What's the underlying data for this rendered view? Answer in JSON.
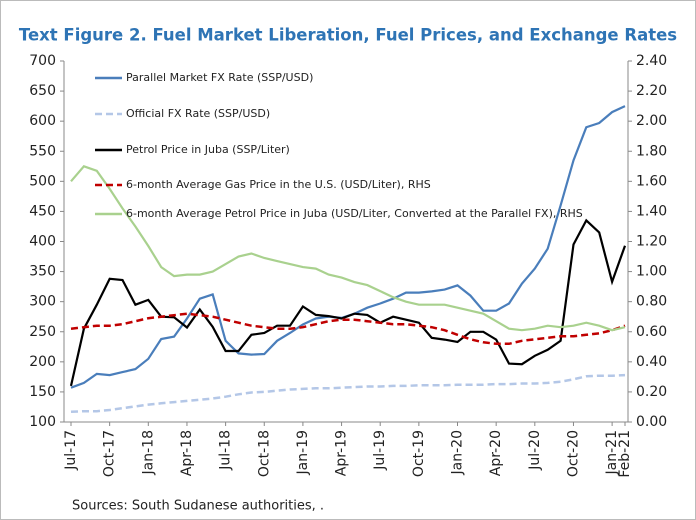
{
  "chart_data": {
    "type": "line",
    "title": "Text Figure 2. Fuel Market Liberation, Fuel Prices, and Exchange Rates",
    "source": "Sources: South Sudanese authorities, .",
    "categories": [
      "Jul-17",
      null,
      null,
      "Oct-17",
      null,
      null,
      "Jan-18",
      null,
      null,
      "Apr-18",
      null,
      null,
      "Jul-18",
      null,
      null,
      "Oct-18",
      null,
      null,
      "Jan-19",
      null,
      null,
      "Apr-19",
      null,
      null,
      "Jul-19",
      null,
      null,
      "Oct-19",
      null,
      null,
      "Jan-20",
      null,
      null,
      "Apr-20",
      null,
      null,
      "Jul-20",
      null,
      null,
      "Oct-20",
      null,
      null,
      "Jan-21",
      "Feb-21"
    ],
    "ylim": [
      100,
      700
    ],
    "yticks": [
      100,
      150,
      200,
      250,
      300,
      350,
      400,
      450,
      500,
      550,
      600,
      650,
      700
    ],
    "y2lim": [
      0,
      2.4
    ],
    "y2ticks": [
      {
        "value": 0,
        "label": "0.00"
      },
      {
        "value": 0.2,
        "label": "0.20"
      },
      {
        "value": 0.4,
        "label": "0.40"
      },
      {
        "value": 0.6,
        "label": "0.60"
      },
      {
        "value": 0.8,
        "label": "0.80"
      },
      {
        "value": 1,
        "label": "1.00"
      },
      {
        "value": 1.2,
        "label": "1.20"
      },
      {
        "value": 1.4,
        "label": "1.40"
      },
      {
        "value": 1.6,
        "label": "1.60"
      },
      {
        "value": 1.8,
        "label": "1.80"
      },
      {
        "value": 2,
        "label": "2.00"
      },
      {
        "value": 2.2,
        "label": "2.20"
      },
      {
        "value": 2.4,
        "label": "2.40"
      }
    ],
    "series": [
      {
        "name": "Parallel Market FX Rate (SSP/USD)",
        "color": "#4a7ebb",
        "dash": "solid",
        "values": [
          157,
          165,
          180,
          178,
          183,
          188,
          205,
          238,
          242,
          272,
          305,
          312,
          235,
          214,
          212,
          213,
          235,
          248,
          262,
          272,
          275,
          273,
          280,
          290,
          297,
          305,
          315,
          315,
          317,
          320,
          327,
          310,
          285,
          285,
          297,
          330,
          355,
          388,
          460,
          535,
          590,
          597,
          615,
          625
        ]
      },
      {
        "name": "Official FX Rate (SSP/USD)",
        "color": "#b4c7e7",
        "dash": "dashed",
        "values": [
          117,
          118,
          118,
          120,
          123,
          126,
          129,
          131,
          133,
          135,
          137,
          139,
          142,
          146,
          149,
          150,
          152,
          154,
          155,
          156,
          156,
          157,
          158,
          159,
          159,
          160,
          160,
          161,
          161,
          161,
          162,
          162,
          162,
          163,
          163,
          164,
          164,
          165,
          167,
          171,
          176,
          177,
          177,
          178
        ]
      },
      {
        "name": "Petrol Price in Juba (SSP/Liter)",
        "color": "#000000",
        "dash": "solid",
        "values": [
          160,
          255,
          295,
          338,
          336,
          295,
          303,
          275,
          274,
          257,
          287,
          258,
          218,
          218,
          245,
          248,
          260,
          260,
          292,
          278,
          276,
          272,
          280,
          278,
          265,
          275,
          270,
          265,
          240,
          237,
          233,
          250,
          250,
          237,
          197,
          196,
          210,
          220,
          235,
          395,
          435,
          415,
          333,
          393
        ]
      },
      {
        "name": "6-month Average Gas Price in the U.S. (USD/Liter), RHS",
        "color": "#c00000",
        "dash": "dashed",
        "axis": "y2",
        "values": [
          0.62,
          0.63,
          0.64,
          0.64,
          0.65,
          0.67,
          0.69,
          0.7,
          0.71,
          0.72,
          0.71,
          0.7,
          0.68,
          0.66,
          0.64,
          0.63,
          0.62,
          0.62,
          0.63,
          0.65,
          0.67,
          0.68,
          0.68,
          0.67,
          0.66,
          0.65,
          0.65,
          0.64,
          0.63,
          0.61,
          0.58,
          0.55,
          0.53,
          0.52,
          0.52,
          0.54,
          0.55,
          0.56,
          0.57,
          0.57,
          0.58,
          0.59,
          0.61,
          0.64
        ]
      },
      {
        "name": "6-month Average Petrol Price in Juba (USD/Liter, Converted at the Parallel FX), RHS",
        "color": "#a9d18e",
        "dash": "solid",
        "axis": "y2",
        "values": [
          1.6,
          1.7,
          1.67,
          1.55,
          1.42,
          1.3,
          1.17,
          1.03,
          0.97,
          0.98,
          0.98,
          1.0,
          1.05,
          1.1,
          1.12,
          1.09,
          1.07,
          1.05,
          1.03,
          1.02,
          0.98,
          0.96,
          0.93,
          0.91,
          0.87,
          0.83,
          0.8,
          0.78,
          0.78,
          0.78,
          0.76,
          0.74,
          0.72,
          0.67,
          0.62,
          0.61,
          0.62,
          0.64,
          0.63,
          0.64,
          0.66,
          0.64,
          0.61,
          0.63
        ]
      }
    ]
  }
}
